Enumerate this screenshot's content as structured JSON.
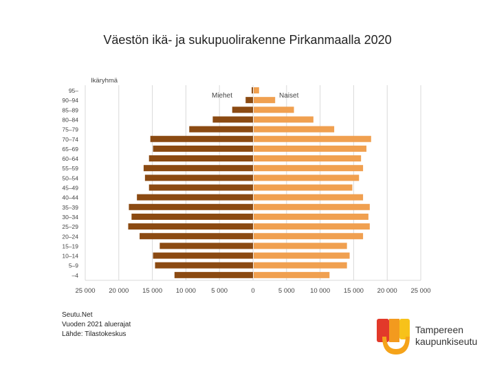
{
  "title": "Väestön ikä- ja sukupuolirakenne Pirkanmaalla 2020",
  "source": {
    "line1": "Seutu.Net",
    "line2": "Vuoden 2021 aluerajat",
    "line3": "Lähde: Tilastokeskus"
  },
  "logo": {
    "line1": "Tampereen",
    "line2": "kaupunkiseutu"
  },
  "colors": {
    "men": "#8B4A12",
    "women": "#F0A050",
    "grid": "#d9d9d9",
    "axis_text": "#444444"
  },
  "chart_data": {
    "type": "bar",
    "orientation": "horizontal-pyramid",
    "ylabel": "Ikäryhmä",
    "categories": [
      "95–",
      "90–94",
      "85–89",
      "80–84",
      "75–79",
      "70–74",
      "65–69",
      "60–64",
      "55–59",
      "50–54",
      "45–49",
      "40–44",
      "35–39",
      "30–34",
      "25–29",
      "20–24",
      "15–19",
      "10–14",
      "5–9",
      "–4"
    ],
    "series": [
      {
        "name": "Miehet",
        "values": [
          200,
          1100,
          3100,
          6000,
          9500,
          15300,
          14900,
          15500,
          16300,
          16100,
          15500,
          17300,
          18500,
          18100,
          18600,
          16900,
          13900,
          14900,
          14600,
          11700
        ]
      },
      {
        "name": "Naiset",
        "values": [
          800,
          3200,
          6000,
          8900,
          12000,
          17500,
          16800,
          16000,
          16300,
          15700,
          14700,
          16300,
          17300,
          17100,
          17300,
          16300,
          13900,
          14300,
          13900,
          11300
        ]
      }
    ],
    "xlim": [
      -25000,
      25000
    ],
    "xticks": [
      "25 000",
      "20 000",
      "15 000",
      "10 000",
      "5 000",
      "0",
      "5 000",
      "10 000",
      "15 000",
      "20 000",
      "25 000"
    ],
    "xtick_values": [
      -25000,
      -20000,
      -15000,
      -10000,
      -5000,
      0,
      5000,
      10000,
      15000,
      20000,
      25000
    ],
    "grid": true,
    "legend": "inline-top"
  }
}
